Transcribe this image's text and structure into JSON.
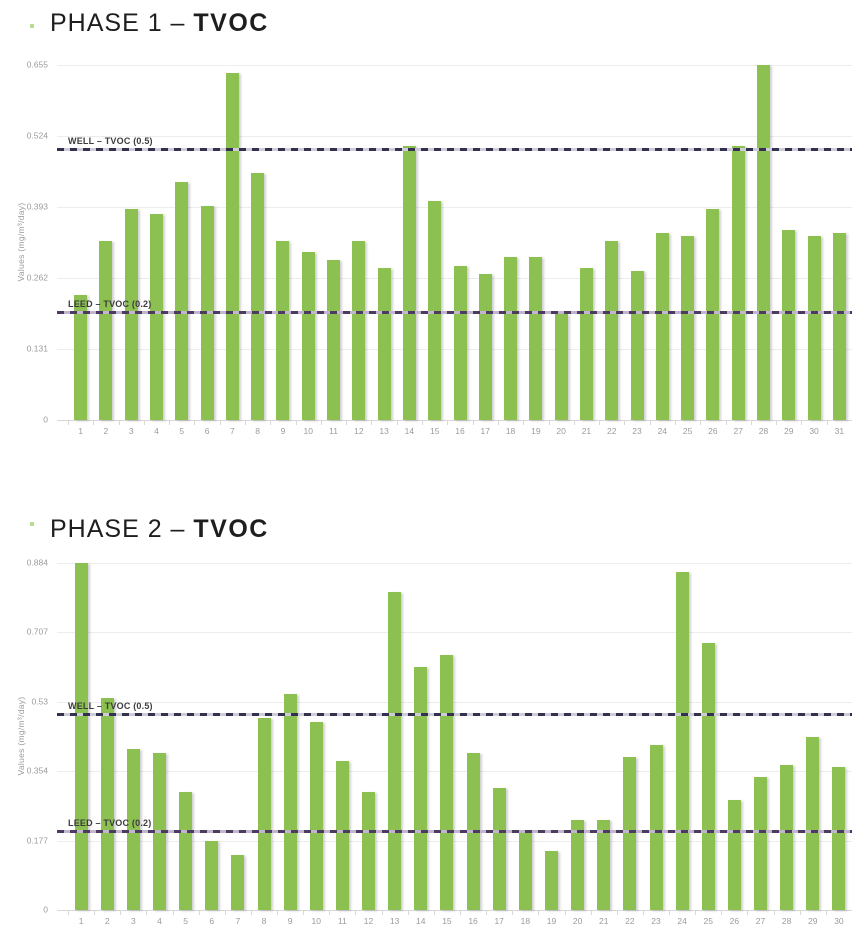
{
  "page": {
    "background": "#ffffff"
  },
  "chart_data": [
    {
      "type": "bar",
      "title": "PHASE 1 – TVOC",
      "title_prefix": "PHASE 1 – ",
      "title_bold": "TVOC",
      "xlabel": "",
      "ylabel": "Values (mg/m³/day)",
      "ylim": [
        0,
        0.655
      ],
      "grid": "horizontal",
      "legend": "none",
      "bar_color": "#8cc152",
      "y_ticks": [
        0.655,
        0.524,
        0.393,
        0.262,
        0.131,
        0
      ],
      "y_tick_labels": [
        "0.655",
        "0.524",
        "0.393",
        "0.262",
        "0.131",
        "0"
      ],
      "categories": [
        "1",
        "2",
        "3",
        "4",
        "5",
        "6",
        "7",
        "8",
        "9",
        "10",
        "11",
        "12",
        "13",
        "14",
        "15",
        "16",
        "17",
        "18",
        "19",
        "20",
        "21",
        "22",
        "23",
        "24",
        "25",
        "26",
        "27",
        "28",
        "29",
        "30",
        "31"
      ],
      "values": [
        0.23,
        0.33,
        0.39,
        0.38,
        0.44,
        0.395,
        0.64,
        0.455,
        0.33,
        0.31,
        0.295,
        0.33,
        0.28,
        0.505,
        0.405,
        0.285,
        0.27,
        0.3,
        0.3,
        0.195,
        0.28,
        0.33,
        0.275,
        0.345,
        0.34,
        0.39,
        0.505,
        0.655,
        0.35,
        0.34,
        0.345
      ],
      "ref_lines": [
        {
          "label": "WELL – TVOC (0.5)",
          "value": 0.5,
          "color": "#32324e",
          "gap_color": "#cdccd8"
        },
        {
          "label": "LEED – TVOC (0.2)",
          "value": 0.2,
          "color": "#4a3b5f",
          "gap_color": "#c2b6cf"
        }
      ]
    },
    {
      "type": "bar",
      "title": "PHASE 2 – TVOC",
      "title_prefix": "PHASE 2 – ",
      "title_bold": "TVOC",
      "xlabel": "",
      "ylabel": "Values (mg/m³/day)",
      "ylim": [
        0,
        0.884
      ],
      "grid": "horizontal",
      "legend": "none",
      "bar_color": "#8cc152",
      "y_ticks": [
        0.884,
        0.707,
        0.53,
        0.354,
        0.177,
        0
      ],
      "y_tick_labels": [
        "0.884",
        "0.707",
        "0.53",
        "0.354",
        "0.177",
        "0"
      ],
      "categories": [
        "1",
        "2",
        "3",
        "4",
        "5",
        "6",
        "7",
        "8",
        "9",
        "10",
        "11",
        "12",
        "13",
        "14",
        "15",
        "16",
        "17",
        "18",
        "19",
        "20",
        "21",
        "22",
        "23",
        "24",
        "25",
        "26",
        "27",
        "28",
        "29",
        "30"
      ],
      "values": [
        0.884,
        0.54,
        0.41,
        0.4,
        0.3,
        0.175,
        0.14,
        0.49,
        0.55,
        0.48,
        0.38,
        0.3,
        0.81,
        0.62,
        0.65,
        0.4,
        0.31,
        0.205,
        0.15,
        0.23,
        0.23,
        0.39,
        0.42,
        0.86,
        0.68,
        0.28,
        0.34,
        0.37,
        0.44,
        0.365
      ],
      "ref_lines": [
        {
          "label": "WELL – TVOC (0.5)",
          "value": 0.5,
          "color": "#32324e",
          "gap_color": "#cdccd8"
        },
        {
          "label": "LEED – TVOC (0.2)",
          "value": 0.2,
          "color": "#4a3b5f",
          "gap_color": "#c2b6cf"
        }
      ]
    }
  ]
}
